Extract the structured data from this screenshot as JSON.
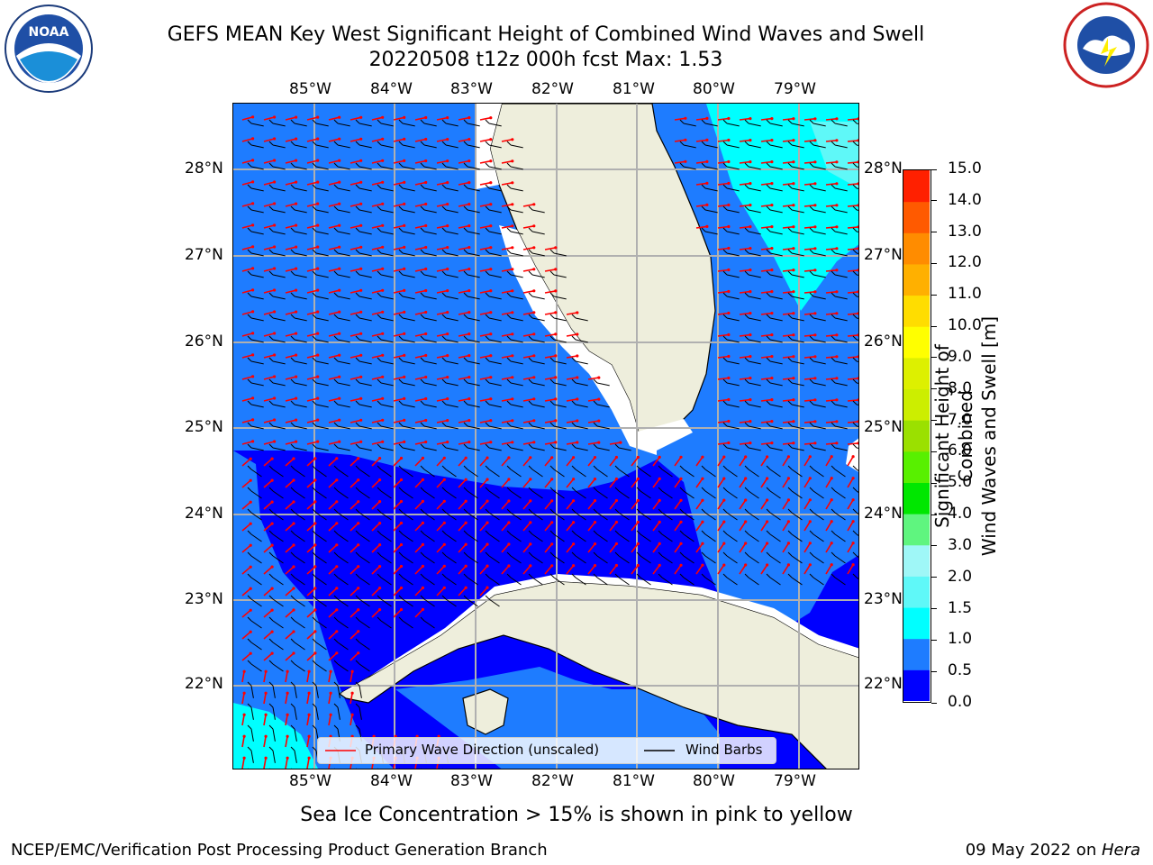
{
  "header": {
    "title_line1": "GEFS MEAN Key West Significant Height of Combined Wind Waves and Swell",
    "title_line2": "20220508 t12z 000h fcst   Max: 1.53"
  },
  "logos": {
    "left": "noaa-logo",
    "right": "nws-logo"
  },
  "map": {
    "lon_labels": [
      "85°W",
      "84°W",
      "83°W",
      "82°W",
      "81°W",
      "80°W",
      "79°W"
    ],
    "lat_labels": [
      "28°N",
      "27°N",
      "26°N",
      "25°N",
      "24°N",
      "23°N",
      "22°N"
    ],
    "colors": {
      "land": "#eeeedc",
      "coast": "#000000",
      "grid": "#b0b0b0",
      "arrow": "#ff0000",
      "barb": "#000000"
    }
  },
  "legend": {
    "primary_wave": "Primary Wave Direction (unscaled)",
    "wind_barbs": "Wind Barbs"
  },
  "colorbar": {
    "label_line1": "Significant Height of Combined",
    "label_line2": "Wind Waves and Swell [m]",
    "ticks": [
      "0.0",
      "0.5",
      "1.0",
      "1.5",
      "2.0",
      "3.0",
      "4.0",
      "5.0",
      "6.0",
      "7.0",
      "8.0",
      "9.0",
      "10.0",
      "11.0",
      "12.0",
      "13.0",
      "14.0",
      "15.0"
    ],
    "colors": [
      "#0000ff",
      "#1e7cff",
      "#00ffff",
      "#5ff8f8",
      "#9ff7f7",
      "#5ff57f",
      "#00e700",
      "#58f000",
      "#9be000",
      "#ccee00",
      "#ddf000",
      "#ffff00",
      "#ffdd00",
      "#ffb000",
      "#ff8c00",
      "#ff5a00",
      "#ff2000",
      "#ff0000"
    ]
  },
  "footer": {
    "sea_ice_note": "Sea Ice Concentration > 15% is shown in pink to yellow",
    "left": "NCEP/EMC/Verification Post Processing Product Generation Branch",
    "right_date": "09 May 2022 on ",
    "right_host": "Hera"
  }
}
